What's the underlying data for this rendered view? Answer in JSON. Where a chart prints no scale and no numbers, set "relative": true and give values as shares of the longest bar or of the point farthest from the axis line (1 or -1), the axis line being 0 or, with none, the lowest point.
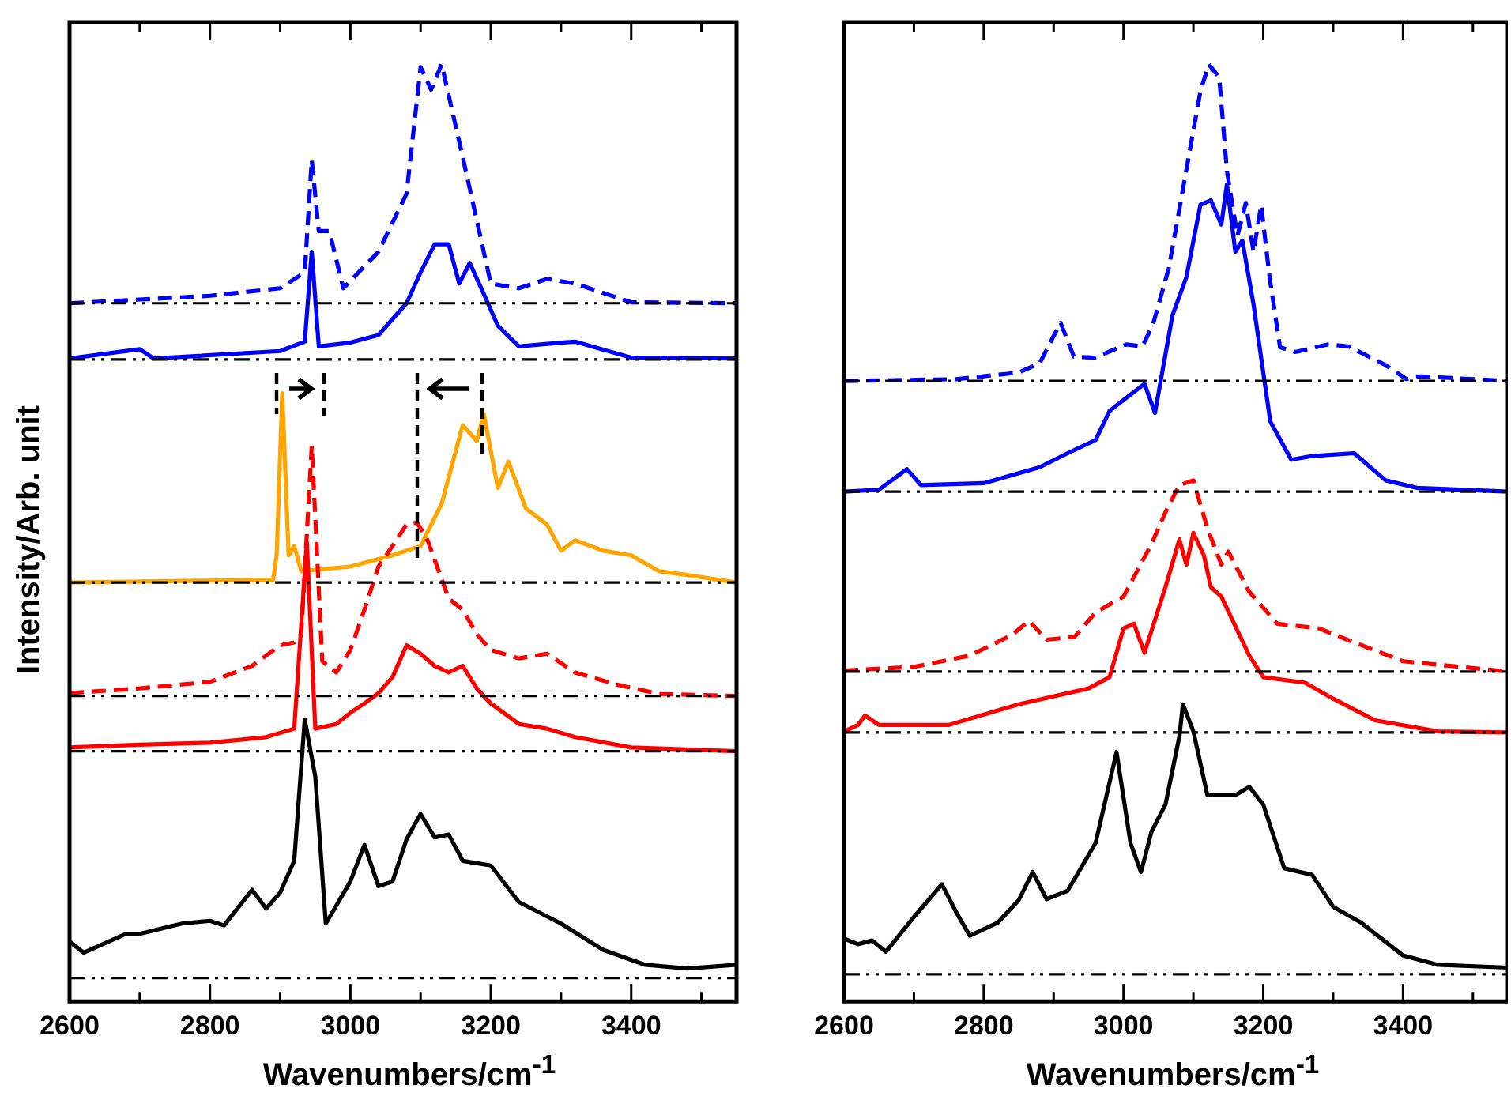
{
  "chart_data": [
    {
      "type": "line",
      "xlabel": "Wavenumbers/cm$^{-1}$",
      "ylabel": "Intensity/Arb. unit",
      "xlim": [
        2600,
        3550
      ],
      "xticks": [
        2600,
        {
          "value": 2700,
          "label": null
        },
        2800,
        {
          "value": 2900,
          "label": null
        },
        3000,
        {
          "value": 3100,
          "label": null
        },
        3200,
        {
          "value": 3300,
          "label": null
        },
        3400,
        {
          "value": 3500,
          "label": null
        }
      ],
      "relative": true,
      "grid": false,
      "legend": false,
      "marker": "none",
      "ref_lines": [
        {
          "axis": "y",
          "value": 0.025,
          "color": "#000000",
          "line_style": "dashed"
        },
        {
          "axis": "y",
          "value": 0.267,
          "color": "#000000",
          "line_style": "dashed"
        },
        {
          "axis": "y",
          "value": 0.326,
          "color": "#000000",
          "line_style": "dashed"
        },
        {
          "axis": "y",
          "value": 0.447,
          "color": "#000000",
          "line_style": "dashed"
        },
        {
          "axis": "y",
          "value": 0.685,
          "color": "#000000",
          "line_style": "dashed"
        },
        {
          "axis": "y",
          "value": 0.745,
          "color": "#000000",
          "line_style": "dashed"
        }
      ],
      "series": [
        {
          "color": "#000000",
          "line_style": "solid",
          "x": [
            2600,
            2620,
            2680,
            2700,
            2760,
            2800,
            2820,
            2860,
            2880,
            2900,
            2920,
            2935,
            2950,
            2965,
            3000,
            3020,
            3040,
            3060,
            3080,
            3100,
            3120,
            3140,
            3160,
            3200,
            3240,
            3300,
            3360,
            3420,
            3480,
            3550
          ],
          "values": [
            0.064,
            0.052,
            0.072,
            0.072,
            0.083,
            0.086,
            0.081,
            0.119,
            0.099,
            0.116,
            0.15,
            0.301,
            0.24,
            0.083,
            0.128,
            0.167,
            0.123,
            0.128,
            0.173,
            0.2,
            0.175,
            0.178,
            0.15,
            0.145,
            0.106,
            0.083,
            0.055,
            0.039,
            0.035,
            0.039
          ]
        },
        {
          "color": "#ff0000",
          "line_style": "solid",
          "x": [
            2600,
            2700,
            2800,
            2880,
            2920,
            2938,
            2950,
            2980,
            3000,
            3020,
            3040,
            3060,
            3080,
            3100,
            3120,
            3140,
            3160,
            3180,
            3200,
            3240,
            3280,
            3320,
            3400,
            3550
          ],
          "values": [
            0.271,
            0.274,
            0.276,
            0.282,
            0.291,
            0.49,
            0.291,
            0.296,
            0.308,
            0.318,
            0.329,
            0.346,
            0.38,
            0.371,
            0.358,
            0.351,
            0.358,
            0.334,
            0.318,
            0.296,
            0.291,
            0.282,
            0.271,
            0.267
          ]
        },
        {
          "color": "#ff0000",
          "line_style": "dashed",
          "x": [
            2600,
            2700,
            2800,
            2860,
            2900,
            2920,
            2930,
            2945,
            2960,
            2980,
            3000,
            3020,
            3040,
            3060,
            3080,
            3095,
            3110,
            3140,
            3160,
            3180,
            3200,
            3240,
            3280,
            3320,
            3380,
            3440,
            3550
          ],
          "values": [
            0.329,
            0.334,
            0.341,
            0.358,
            0.38,
            0.383,
            0.392,
            0.593,
            0.363,
            0.351,
            0.375,
            0.418,
            0.464,
            0.486,
            0.509,
            0.511,
            0.492,
            0.43,
            0.418,
            0.392,
            0.375,
            0.366,
            0.371,
            0.351,
            0.338,
            0.328,
            0.326
          ]
        },
        {
          "color": "#ffa500",
          "line_style": "solid",
          "x": [
            2600,
            2800,
            2890,
            2895,
            2903,
            2912,
            2920,
            2930,
            3000,
            3060,
            3100,
            3130,
            3160,
            3180,
            3190,
            3210,
            3225,
            3250,
            3280,
            3300,
            3320,
            3360,
            3400,
            3440,
            3480,
            3550
          ],
          "values": [
            0.447,
            0.449,
            0.45,
            0.476,
            0.649,
            0.476,
            0.486,
            0.459,
            0.464,
            0.476,
            0.486,
            0.531,
            0.615,
            0.598,
            0.627,
            0.548,
            0.576,
            0.526,
            0.509,
            0.481,
            0.492,
            0.481,
            0.476,
            0.459,
            0.455,
            0.447
          ]
        },
        {
          "color": "#0000ff",
          "line_style": "solid",
          "x": [
            2600,
            2700,
            2720,
            2900,
            2935,
            2945,
            2955,
            3000,
            3040,
            3080,
            3100,
            3120,
            3140,
            3155,
            3170,
            3190,
            3210,
            3240,
            3300,
            3320,
            3400,
            3550
          ],
          "values": [
            0.686,
            0.696,
            0.686,
            0.694,
            0.704,
            0.8,
            0.699,
            0.703,
            0.711,
            0.745,
            0.778,
            0.808,
            0.808,
            0.766,
            0.788,
            0.755,
            0.721,
            0.699,
            0.703,
            0.704,
            0.687,
            0.686
          ]
        },
        {
          "color": "#0000ff",
          "line_style": "dashed",
          "x": [
            2600,
            2800,
            2900,
            2935,
            2945,
            2955,
            2970,
            2990,
            3040,
            3080,
            3100,
            3115,
            3130,
            3160,
            3200,
            3240,
            3280,
            3320,
            3400,
            3550
          ],
          "values": [
            0.745,
            0.753,
            0.761,
            0.778,
            0.898,
            0.822,
            0.822,
            0.761,
            0.8,
            0.862,
            0.997,
            0.973,
            1,
            0.901,
            0.766,
            0.761,
            0.771,
            0.766,
            0.746,
            0.745
          ]
        }
      ]
    },
    {
      "type": "line",
      "xlabel": "Wavenumbers/cm$^{-1}$",
      "xlim": [
        2600,
        3550
      ],
      "xticks": [
        2600,
        {
          "value": 2700,
          "label": null
        },
        2800,
        {
          "value": 2900,
          "label": null
        },
        3000,
        {
          "value": 3100,
          "label": null
        },
        3200,
        {
          "value": 3300,
          "label": null
        },
        3400,
        {
          "value": 3500,
          "label": null
        }
      ],
      "relative": true,
      "grid": false,
      "legend": false,
      "marker": "none",
      "ref_lines": [
        {
          "axis": "y",
          "value": 0.029,
          "color": "#000000",
          "line_style": "dashed"
        },
        {
          "axis": "y",
          "value": 0.287,
          "color": "#000000",
          "line_style": "dashed"
        },
        {
          "axis": "y",
          "value": 0.352,
          "color": "#000000",
          "line_style": "dashed"
        },
        {
          "axis": "y",
          "value": 0.544,
          "color": "#000000",
          "line_style": "dashed"
        },
        {
          "axis": "y",
          "value": 0.662,
          "color": "#000000",
          "line_style": "dashed"
        }
      ],
      "series": [
        {
          "color": "#000000",
          "line_style": "solid",
          "x": [
            2600,
            2620,
            2640,
            2660,
            2700,
            2740,
            2760,
            2780,
            2820,
            2850,
            2870,
            2890,
            2920,
            2960,
            2990,
            3010,
            3025,
            3040,
            3060,
            3080,
            3085,
            3100,
            3120,
            3140,
            3160,
            3180,
            3200,
            3230,
            3270,
            3300,
            3340,
            3400,
            3450,
            3550
          ],
          "values": [
            0.067,
            0.061,
            0.065,
            0.053,
            0.09,
            0.125,
            0.096,
            0.07,
            0.084,
            0.108,
            0.138,
            0.109,
            0.118,
            0.169,
            0.266,
            0.169,
            0.138,
            0.181,
            0.21,
            0.283,
            0.317,
            0.288,
            0.22,
            0.22,
            0.22,
            0.229,
            0.21,
            0.142,
            0.135,
            0.101,
            0.084,
            0.049,
            0.039,
            0.036
          ]
        },
        {
          "color": "#ff0000",
          "line_style": "solid",
          "x": [
            2600,
            2620,
            2630,
            2650,
            2750,
            2850,
            2950,
            2980,
            3000,
            3015,
            3030,
            3060,
            3080,
            3090,
            3100,
            3115,
            3125,
            3140,
            3180,
            3200,
            3260,
            3300,
            3360,
            3450,
            3550
          ],
          "values": [
            0.288,
            0.295,
            0.305,
            0.295,
            0.295,
            0.317,
            0.334,
            0.346,
            0.398,
            0.403,
            0.372,
            0.442,
            0.493,
            0.466,
            0.5,
            0.476,
            0.442,
            0.432,
            0.369,
            0.346,
            0.34,
            0.323,
            0.3,
            0.288,
            0.287
          ]
        },
        {
          "color": "#ff0000",
          "line_style": "dashed",
          "x": [
            2600,
            2700,
            2780,
            2840,
            2865,
            2890,
            2930,
            2960,
            3000,
            3040,
            3060,
            3080,
            3100,
            3120,
            3140,
            3150,
            3180,
            3220,
            3280,
            3320,
            3400,
            3550
          ],
          "values": [
            0.353,
            0.357,
            0.369,
            0.391,
            0.406,
            0.386,
            0.389,
            0.415,
            0.432,
            0.488,
            0.522,
            0.551,
            0.556,
            0.505,
            0.466,
            0.48,
            0.437,
            0.403,
            0.398,
            0.386,
            0.363,
            0.352
          ]
        },
        {
          "color": "#0000ff",
          "line_style": "solid",
          "x": [
            2600,
            2650,
            2690,
            2710,
            2800,
            2880,
            2920,
            2960,
            2980,
            2990,
            3030,
            3045,
            3070,
            3090,
            3110,
            3125,
            3140,
            3148,
            3160,
            3170,
            3186,
            3210,
            3240,
            3270,
            3330,
            3375,
            3420,
            3550
          ],
          "values": [
            0.544,
            0.546,
            0.568,
            0.551,
            0.553,
            0.57,
            0.585,
            0.599,
            0.63,
            0.636,
            0.659,
            0.628,
            0.732,
            0.773,
            0.85,
            0.855,
            0.829,
            0.872,
            0.8,
            0.812,
            0.744,
            0.619,
            0.578,
            0.582,
            0.585,
            0.556,
            0.548,
            0.544
          ]
        },
        {
          "color": "#0000ff",
          "line_style": "dashed",
          "x": [
            2600,
            2760,
            2850,
            2880,
            2900,
            2910,
            2929,
            2959,
            3004,
            3027,
            3042,
            3065,
            3091,
            3110,
            3122,
            3137,
            3148,
            3163,
            3175,
            3186,
            3197,
            3209,
            3224,
            3246,
            3292,
            3322,
            3375,
            3405,
            3424,
            3550
          ],
          "values": [
            0.662,
            0.664,
            0.671,
            0.681,
            0.71,
            0.724,
            0.688,
            0.687,
            0.701,
            0.699,
            0.722,
            0.783,
            0.892,
            0.971,
            1,
            0.986,
            0.886,
            0.817,
            0.852,
            0.8,
            0.85,
            0.773,
            0.698,
            0.693,
            0.701,
            0.699,
            0.679,
            0.664,
            0.667,
            0.662
          ]
        }
      ]
    }
  ]
}
